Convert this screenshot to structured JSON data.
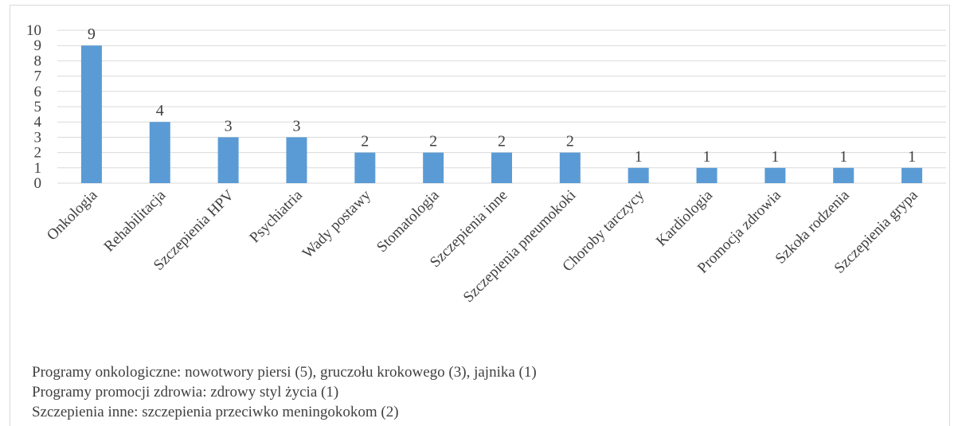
{
  "chart_data": {
    "type": "bar",
    "title": "",
    "xlabel": "",
    "ylabel": "",
    "ylim": [
      0,
      10
    ],
    "yticks": [
      0,
      1,
      2,
      3,
      4,
      5,
      6,
      7,
      8,
      9,
      10
    ],
    "grid": true,
    "categories": [
      "Onkologia",
      "Rehabilitacja",
      "Szczepienia HPV",
      "Psychiatria",
      "Wady postawy",
      "Stomatologia",
      "Szczepienia inne",
      "Szczepienia pneumokoki",
      "Choroby tarczycy",
      "Kardiologia",
      "Promocja zdrowia",
      "Szkoła rodzenia",
      "Szczepienia grypa"
    ],
    "values": [
      9,
      4,
      3,
      3,
      2,
      2,
      2,
      2,
      1,
      1,
      1,
      1,
      1
    ],
    "bar_color": "#5b9bd5"
  },
  "notes": [
    "Programy onkologiczne: nowotwory piersi (5), gruczołu krokowego (3), jajnika (1)",
    "Programy promocji zdrowia: zdrowy styl życia (1)",
    "Szczepienia inne: szczepienia przeciwko meningokokom (2)"
  ]
}
